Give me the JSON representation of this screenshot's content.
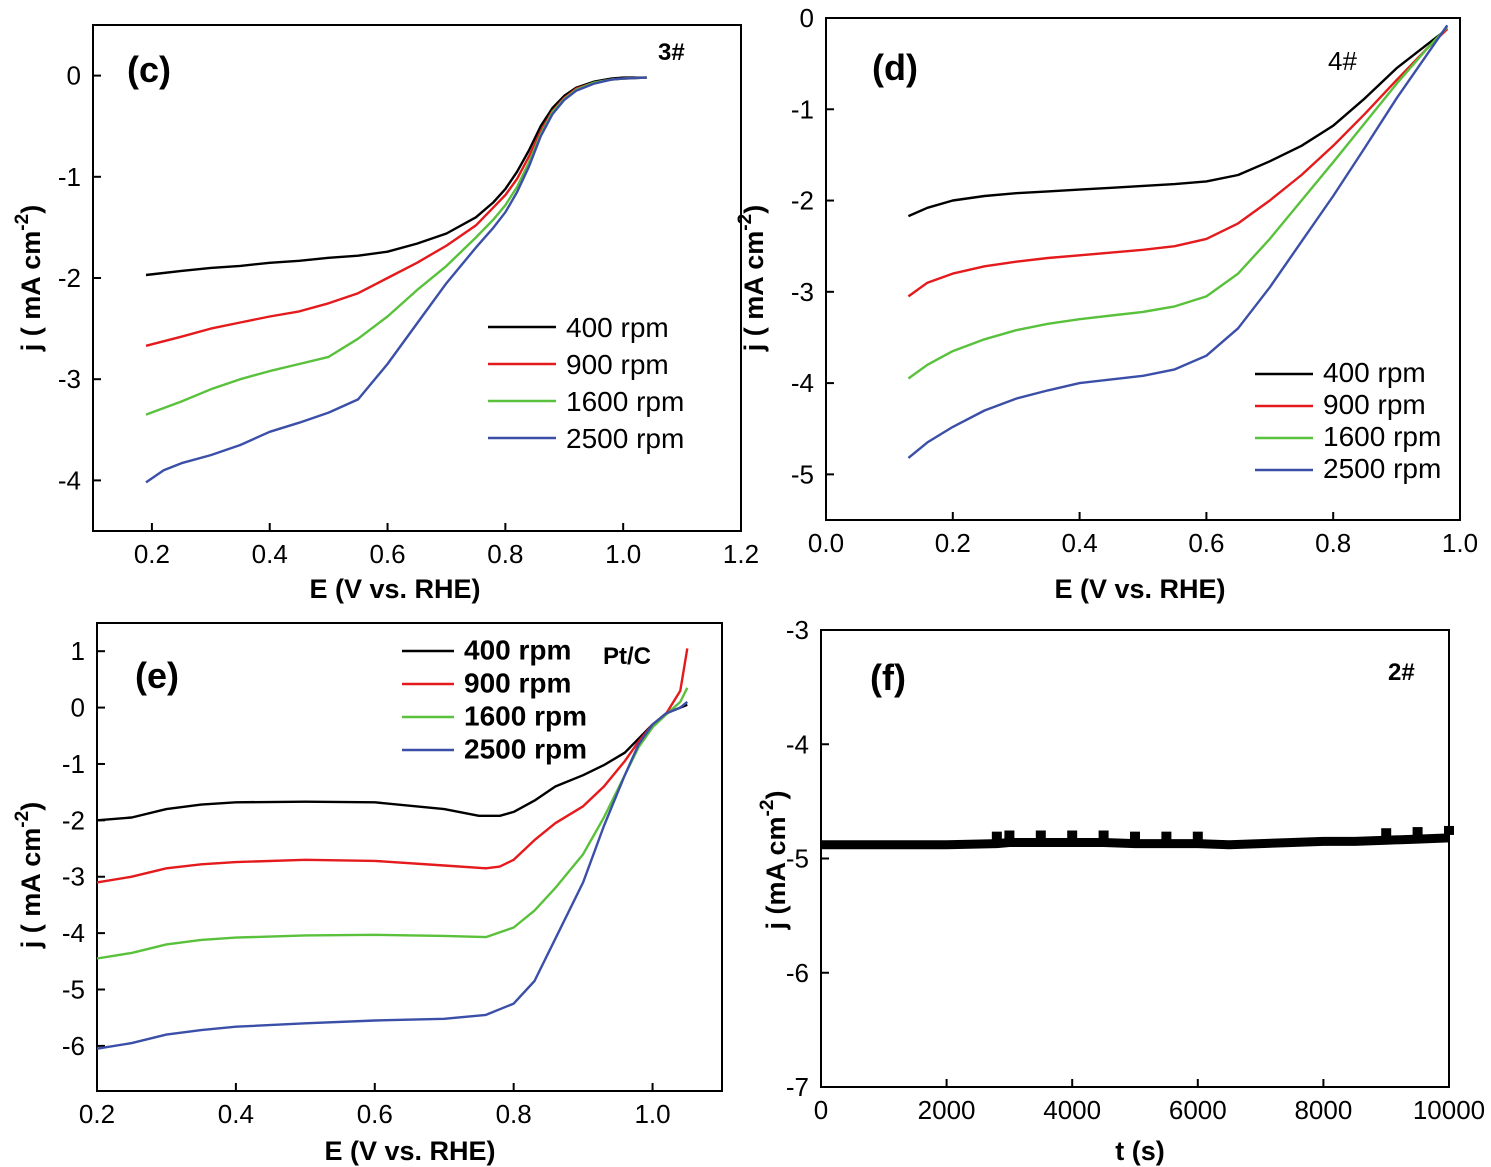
{
  "chart_data": [
    {
      "type": "line",
      "panel_label": "(c)",
      "tag": "3#",
      "xlabel": "E (V vs. RHE)",
      "ylabel": "j ( mA cm-2)",
      "ylabel_main": "j ( mA cm",
      "ylabel_sup": "-2",
      "ylabel_tail": ")",
      "xlim": [
        0.1,
        1.2
      ],
      "ylim": [
        -4.5,
        0.5
      ],
      "xticks": [
        0.2,
        0.4,
        0.6,
        0.8,
        1.0,
        1.2
      ],
      "xtick_labels": [
        "0.2",
        "0.4",
        "0.6",
        "0.8",
        "1.0",
        "1.2"
      ],
      "yticks": [
        -4,
        -3,
        -2,
        -1,
        0
      ],
      "ytick_labels": [
        "-4",
        "-3",
        "-2",
        "-1",
        "0"
      ],
      "legend_position": "lower-right",
      "series": [
        {
          "name": "400 rpm",
          "color": "#000000",
          "x": [
            0.19,
            0.25,
            0.3,
            0.35,
            0.4,
            0.45,
            0.5,
            0.55,
            0.6,
            0.65,
            0.7,
            0.75,
            0.78,
            0.8,
            0.82,
            0.84,
            0.86,
            0.88,
            0.9,
            0.92,
            0.95,
            0.98,
            1.0,
            1.04
          ],
          "y": [
            -1.97,
            -1.93,
            -1.9,
            -1.88,
            -1.85,
            -1.83,
            -1.8,
            -1.78,
            -1.74,
            -1.66,
            -1.56,
            -1.4,
            -1.25,
            -1.12,
            -0.95,
            -0.74,
            -0.5,
            -0.32,
            -0.2,
            -0.12,
            -0.06,
            -0.03,
            -0.02,
            -0.02
          ]
        },
        {
          "name": "900 rpm",
          "color": "#e41a1c",
          "x": [
            0.19,
            0.25,
            0.3,
            0.35,
            0.4,
            0.45,
            0.5,
            0.55,
            0.6,
            0.65,
            0.7,
            0.75,
            0.78,
            0.8,
            0.82,
            0.84,
            0.86,
            0.88,
            0.9,
            0.92,
            0.95,
            0.98,
            1.0,
            1.04
          ],
          "y": [
            -2.67,
            -2.58,
            -2.5,
            -2.44,
            -2.38,
            -2.33,
            -2.25,
            -2.15,
            -2.0,
            -1.85,
            -1.68,
            -1.48,
            -1.3,
            -1.18,
            -1.02,
            -0.8,
            -0.55,
            -0.35,
            -0.22,
            -0.13,
            -0.07,
            -0.04,
            -0.03,
            -0.02
          ]
        },
        {
          "name": "1600 rpm",
          "color": "#59c13b",
          "x": [
            0.19,
            0.25,
            0.3,
            0.35,
            0.4,
            0.45,
            0.5,
            0.55,
            0.6,
            0.65,
            0.7,
            0.75,
            0.78,
            0.8,
            0.82,
            0.84,
            0.86,
            0.88,
            0.9,
            0.92,
            0.95,
            0.98,
            1.0,
            1.04
          ],
          "y": [
            -3.35,
            -3.22,
            -3.1,
            -3.0,
            -2.92,
            -2.85,
            -2.78,
            -2.6,
            -2.38,
            -2.12,
            -1.88,
            -1.6,
            -1.42,
            -1.28,
            -1.1,
            -0.86,
            -0.58,
            -0.36,
            -0.23,
            -0.14,
            -0.07,
            -0.04,
            -0.03,
            -0.02
          ]
        },
        {
          "name": "2500 rpm",
          "color": "#3b4fa8",
          "x": [
            0.19,
            0.22,
            0.25,
            0.3,
            0.35,
            0.4,
            0.45,
            0.5,
            0.55,
            0.6,
            0.65,
            0.7,
            0.75,
            0.78,
            0.8,
            0.82,
            0.84,
            0.86,
            0.88,
            0.9,
            0.92,
            0.95,
            0.98,
            1.0,
            1.04
          ],
          "y": [
            -4.02,
            -3.9,
            -3.83,
            -3.75,
            -3.65,
            -3.52,
            -3.43,
            -3.33,
            -3.2,
            -2.85,
            -2.45,
            -2.05,
            -1.7,
            -1.5,
            -1.35,
            -1.15,
            -0.9,
            -0.6,
            -0.38,
            -0.24,
            -0.15,
            -0.08,
            -0.04,
            -0.03,
            -0.02
          ]
        }
      ]
    },
    {
      "type": "line",
      "panel_label": "(d)",
      "tag": "4#",
      "xlabel": "E (V vs. RHE)",
      "ylabel": "j ( mA cm-2)",
      "ylabel_main": "j ( mA cm",
      "ylabel_sup": "-2",
      "ylabel_tail": ")",
      "xlim": [
        0.0,
        1.0
      ],
      "ylim": [
        -5.5,
        0.0
      ],
      "xticks": [
        0.0,
        0.2,
        0.4,
        0.6,
        0.8,
        1.0
      ],
      "xtick_labels": [
        "0.0",
        "0.2",
        "0.4",
        "0.6",
        "0.8",
        "1.0"
      ],
      "yticks": [
        -5,
        -4,
        -3,
        -2,
        -1,
        0
      ],
      "ytick_labels": [
        "-5",
        "-4",
        "-3",
        "-2",
        "-1",
        "0"
      ],
      "legend_position": "lower-right",
      "series": [
        {
          "name": "400 rpm",
          "color": "#000000",
          "x": [
            0.13,
            0.16,
            0.2,
            0.25,
            0.3,
            0.35,
            0.4,
            0.45,
            0.5,
            0.55,
            0.6,
            0.65,
            0.7,
            0.75,
            0.8,
            0.85,
            0.9,
            0.95,
            0.98
          ],
          "y": [
            -2.17,
            -2.08,
            -2.0,
            -1.95,
            -1.92,
            -1.9,
            -1.88,
            -1.86,
            -1.84,
            -1.82,
            -1.79,
            -1.72,
            -1.57,
            -1.4,
            -1.18,
            -0.88,
            -0.55,
            -0.28,
            -0.12
          ]
        },
        {
          "name": "900 rpm",
          "color": "#e41a1c",
          "x": [
            0.13,
            0.16,
            0.2,
            0.25,
            0.3,
            0.35,
            0.4,
            0.45,
            0.5,
            0.55,
            0.6,
            0.65,
            0.7,
            0.75,
            0.8,
            0.85,
            0.9,
            0.95,
            0.98
          ],
          "y": [
            -3.05,
            -2.9,
            -2.8,
            -2.72,
            -2.67,
            -2.63,
            -2.6,
            -2.57,
            -2.54,
            -2.5,
            -2.42,
            -2.25,
            -2.0,
            -1.72,
            -1.4,
            -1.05,
            -0.68,
            -0.32,
            -0.12
          ]
        },
        {
          "name": "1600 rpm",
          "color": "#59c13b",
          "x": [
            0.13,
            0.16,
            0.2,
            0.25,
            0.3,
            0.35,
            0.4,
            0.45,
            0.5,
            0.55,
            0.6,
            0.65,
            0.7,
            0.75,
            0.8,
            0.85,
            0.9,
            0.95,
            0.98
          ],
          "y": [
            -3.95,
            -3.8,
            -3.65,
            -3.52,
            -3.42,
            -3.35,
            -3.3,
            -3.26,
            -3.22,
            -3.16,
            -3.05,
            -2.8,
            -2.42,
            -2.0,
            -1.58,
            -1.15,
            -0.72,
            -0.32,
            -0.1
          ]
        },
        {
          "name": "2500 rpm",
          "color": "#3b4fa8",
          "x": [
            0.13,
            0.16,
            0.2,
            0.25,
            0.3,
            0.35,
            0.4,
            0.45,
            0.5,
            0.55,
            0.6,
            0.65,
            0.7,
            0.75,
            0.8,
            0.85,
            0.9,
            0.95,
            0.98
          ],
          "y": [
            -4.82,
            -4.65,
            -4.48,
            -4.3,
            -4.17,
            -4.08,
            -4.0,
            -3.96,
            -3.92,
            -3.85,
            -3.7,
            -3.4,
            -2.95,
            -2.45,
            -1.95,
            -1.42,
            -0.88,
            -0.38,
            -0.08
          ]
        }
      ]
    },
    {
      "type": "line",
      "panel_label": "(e)",
      "tag": "Pt/C",
      "xlabel": "E (V vs. RHE)",
      "ylabel": "j ( mA cm-2)",
      "ylabel_main": "j ( mA cm",
      "ylabel_sup": "-2",
      "ylabel_tail": ")",
      "xlim": [
        0.2,
        1.1
      ],
      "ylim": [
        -6.8,
        1.5
      ],
      "xticks": [
        0.2,
        0.4,
        0.6,
        0.8,
        1.0
      ],
      "xtick_labels": [
        "0.2",
        "0.4",
        "0.6",
        "0.8",
        "1.0"
      ],
      "yticks": [
        -6,
        -5,
        -4,
        -3,
        -2,
        -1,
        0,
        1
      ],
      "ytick_labels": [
        "-6",
        "-5",
        "-4",
        "-3",
        "-2",
        "-1",
        "0",
        "1"
      ],
      "legend_position": "top-center",
      "series": [
        {
          "name": "400 rpm",
          "color": "#000000",
          "x": [
            0.2,
            0.25,
            0.3,
            0.35,
            0.4,
            0.5,
            0.6,
            0.7,
            0.75,
            0.78,
            0.8,
            0.83,
            0.86,
            0.9,
            0.93,
            0.96,
            0.98,
            1.0,
            1.02,
            1.04,
            1.05
          ],
          "y": [
            -2.0,
            -1.95,
            -1.8,
            -1.72,
            -1.68,
            -1.67,
            -1.68,
            -1.8,
            -1.92,
            -1.92,
            -1.85,
            -1.65,
            -1.4,
            -1.2,
            -1.02,
            -0.8,
            -0.55,
            -0.3,
            -0.1,
            0.0,
            0.05
          ]
        },
        {
          "name": "900 rpm",
          "color": "#e41a1c",
          "x": [
            0.2,
            0.25,
            0.3,
            0.35,
            0.4,
            0.5,
            0.6,
            0.7,
            0.76,
            0.78,
            0.8,
            0.83,
            0.86,
            0.9,
            0.93,
            0.96,
            0.98,
            1.0,
            1.02,
            1.04,
            1.05
          ],
          "y": [
            -3.1,
            -3.0,
            -2.85,
            -2.78,
            -2.74,
            -2.7,
            -2.72,
            -2.8,
            -2.85,
            -2.82,
            -2.7,
            -2.35,
            -2.05,
            -1.75,
            -1.4,
            -0.95,
            -0.6,
            -0.3,
            -0.1,
            0.3,
            1.05
          ]
        },
        {
          "name": "1600 rpm",
          "color": "#59c13b",
          "x": [
            0.2,
            0.25,
            0.3,
            0.35,
            0.4,
            0.5,
            0.6,
            0.7,
            0.76,
            0.8,
            0.83,
            0.86,
            0.9,
            0.93,
            0.96,
            0.98,
            1.0,
            1.02,
            1.04,
            1.05
          ],
          "y": [
            -4.45,
            -4.35,
            -4.2,
            -4.12,
            -4.08,
            -4.04,
            -4.03,
            -4.05,
            -4.07,
            -3.9,
            -3.6,
            -3.2,
            -2.6,
            -1.95,
            -1.2,
            -0.7,
            -0.35,
            -0.12,
            0.1,
            0.35
          ]
        },
        {
          "name": "2500 rpm",
          "color": "#3b4fa8",
          "x": [
            0.2,
            0.25,
            0.3,
            0.35,
            0.4,
            0.5,
            0.6,
            0.7,
            0.76,
            0.8,
            0.83,
            0.86,
            0.9,
            0.93,
            0.96,
            0.98,
            1.0,
            1.02,
            1.04,
            1.05
          ],
          "y": [
            -6.05,
            -5.95,
            -5.8,
            -5.72,
            -5.66,
            -5.6,
            -5.55,
            -5.52,
            -5.45,
            -5.25,
            -4.85,
            -4.1,
            -3.1,
            -2.1,
            -1.2,
            -0.65,
            -0.3,
            -0.1,
            0.0,
            0.1
          ]
        }
      ]
    },
    {
      "type": "scatter",
      "panel_label": "(f)",
      "tag": "2#",
      "xlabel": "t (s)",
      "ylabel": "j (mA cm-2)",
      "ylabel_main": "j (mA cm",
      "ylabel_sup": "-2",
      "ylabel_tail": ")",
      "xlim": [
        0,
        10000
      ],
      "ylim": [
        -7,
        -3
      ],
      "xticks": [
        0,
        2000,
        4000,
        6000,
        8000,
        10000
      ],
      "xtick_labels": [
        "0",
        "2000",
        "4000",
        "6000",
        "8000",
        "10000"
      ],
      "yticks": [
        -7,
        -6,
        -5,
        -4,
        -3
      ],
      "ytick_labels": [
        "-7",
        "-6",
        "-5",
        "-4",
        "-3"
      ],
      "series": [
        {
          "name": "2#",
          "color": "#000000",
          "x": [
            0,
            2000,
            2800,
            3000,
            3500,
            4000,
            4500,
            5000,
            5500,
            6000,
            6500,
            7000,
            7500,
            8000,
            8500,
            9000,
            9500,
            10000
          ],
          "y": [
            -4.88,
            -4.88,
            -4.87,
            -4.86,
            -4.86,
            -4.86,
            -4.86,
            -4.87,
            -4.87,
            -4.87,
            -4.88,
            -4.87,
            -4.86,
            -4.85,
            -4.85,
            -4.84,
            -4.83,
            -4.82
          ]
        }
      ]
    }
  ]
}
